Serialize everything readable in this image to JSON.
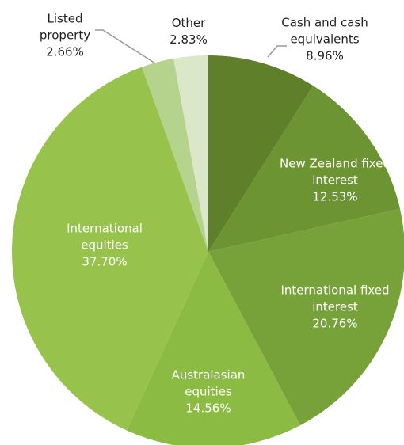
{
  "chart_data": {
    "type": "pie",
    "categories": [
      "Cash and cash equivalents",
      "New Zealand fixed interest",
      "International fixed interest",
      "Australasian equities",
      "International equities",
      "Listed property",
      "Other"
    ],
    "values": [
      8.96,
      12.53,
      20.76,
      14.56,
      37.7,
      2.66,
      2.83
    ],
    "value_labels": [
      "8.96%",
      "12.53%",
      "20.76%",
      "14.56%",
      "37.70%",
      "2.66%",
      "2.83%"
    ],
    "colors": [
      "#5f7f2b",
      "#6d9433",
      "#77a23a",
      "#8bbb43",
      "#97c24c",
      "#b5d38d",
      "#dbe7c9"
    ]
  }
}
